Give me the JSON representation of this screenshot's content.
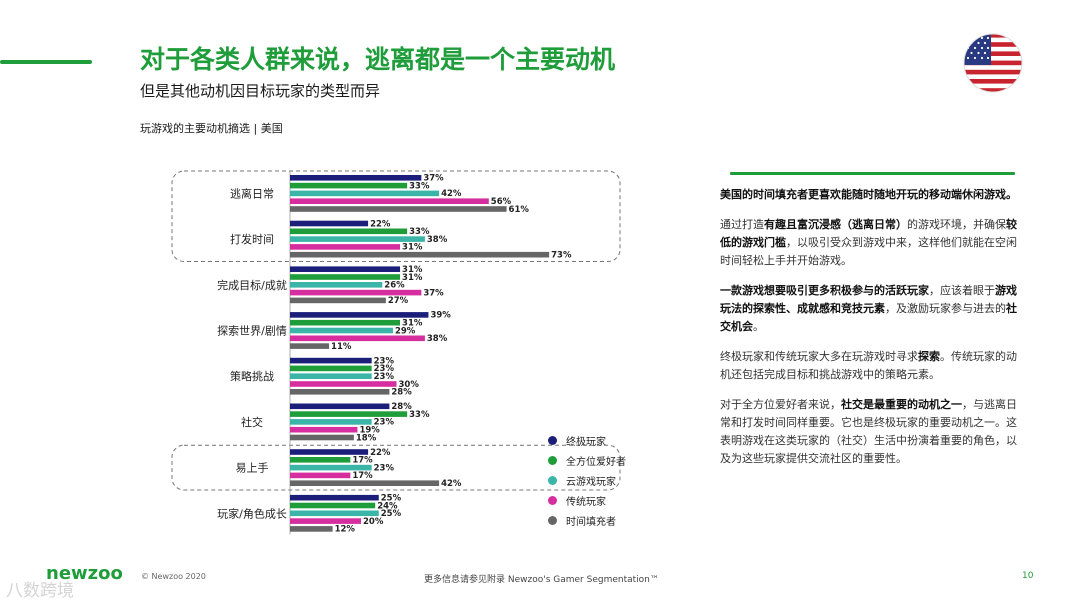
{
  "header": {
    "title": "对于各类人群来说，逃离都是一个主要动机",
    "subtitle": "但是其他动机因目标玩家的类型而异",
    "chart_caption": "玩游戏的主要动机摘选 | 美国",
    "flag_icon": "us-flag-icon"
  },
  "colors": {
    "accent": "#1f9d3a",
    "series": [
      "#1c1f7a",
      "#1f9d3a",
      "#3bb5a8",
      "#d62e9f",
      "#666666"
    ]
  },
  "chart_data": {
    "type": "bar",
    "orientation": "horizontal",
    "categories": [
      "逃离日常",
      "打发时间",
      "完成目标/成就",
      "探索世界/剧情",
      "策略挑战",
      "社交",
      "易上手",
      "玩家/角色成长"
    ],
    "highlighted_categories": [
      "逃离日常",
      "打发时间",
      "易上手"
    ],
    "series": [
      {
        "name": "终极玩家",
        "values": [
          37,
          22,
          31,
          39,
          23,
          28,
          22,
          25
        ],
        "labels": [
          "37%",
          "22%",
          "31%",
          "39%",
          "23%",
          "28%",
          "22%",
          "25%"
        ]
      },
      {
        "name": "全方位爱好者",
        "values": [
          33,
          33,
          31,
          31,
          23,
          33,
          17,
          24
        ],
        "labels": [
          "33%",
          "33%",
          "31%",
          "31%",
          "23%",
          "33%",
          "17%",
          "24%"
        ]
      },
      {
        "name": "云游戏玩家",
        "values": [
          42,
          38,
          26,
          29,
          23,
          23,
          23,
          25
        ],
        "labels": [
          "42%",
          "38%",
          "26%",
          "29%",
          "23%",
          "23%",
          "23%",
          "25%"
        ]
      },
      {
        "name": "传统玩家",
        "values": [
          56,
          31,
          37,
          38,
          30,
          19,
          17,
          20
        ],
        "labels": [
          "56%",
          "31%",
          "37%",
          "38%",
          "30%",
          "19%",
          "17%",
          "20%"
        ]
      },
      {
        "name": "时间填充者",
        "values": [
          61,
          73,
          27,
          11,
          28,
          18,
          42,
          12
        ],
        "labels": [
          "61%",
          "73%",
          "27%",
          "11%",
          "28%",
          "18%",
          "42%",
          "12%"
        ]
      }
    ]
  },
  "notes": {
    "p1": "美国的时间填充者更喜欢能随时随地开玩的移动端休闲游戏。",
    "p2_a": "通过打造",
    "p2_b": "有趣且富沉浸感（逃离日常）",
    "p2_c": "的游戏环境，并确保",
    "p2_d": "较低的游戏门槛",
    "p2_e": "，以吸引受众到游戏中来，这样他们就能在空闲时间轻松上手并开始游戏。",
    "p3_a": "一款游戏想要吸引更多积极参与的活跃玩家",
    "p3_b": "，应该着眼于",
    "p3_c": "游戏玩法的探索性、成就感和竞技元素",
    "p3_d": "，及激励玩家参与进去的",
    "p3_e": "社交机会",
    "p3_f": "。",
    "p4_a": "终极玩家和传统玩家大多在玩游戏时寻求",
    "p4_b": "探索",
    "p4_c": "。传统玩家的动机还包括完成目标和挑战游戏中的策略元素。",
    "p5_a": "对于全方位爱好者来说，",
    "p5_b": "社交是最重要的动机之一",
    "p5_c": "，与逃离日常和打发时间同样重要。它也是终极玩家的重要动机之一。这表明游戏在这类玩家的（社交）生活中扮演着重要的角色，以及为这些玩家提供交流社区的重要性。"
  },
  "footer": {
    "logo": "newzoo",
    "copyright": "© Newzoo 2020",
    "more_info": "更多信息请参见附录 Newzoo's Gamer Segmentation™",
    "page": "10",
    "watermark": "八数跨境"
  }
}
